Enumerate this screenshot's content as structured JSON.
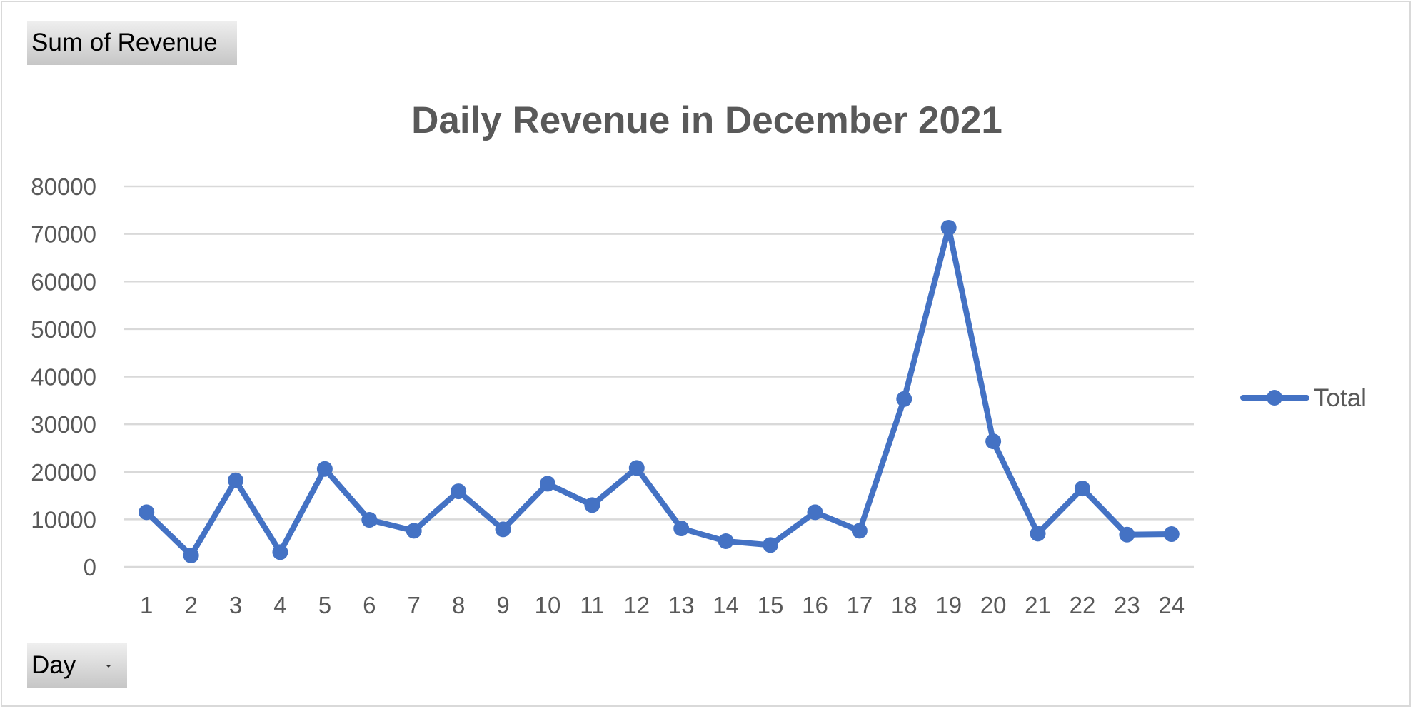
{
  "pivot": {
    "value_field": "Sum of Revenue",
    "axis_field": "Day"
  },
  "colors": {
    "series": "#4472c4",
    "gridline": "#d9d9d9",
    "text": "#595959"
  },
  "chart_data": {
    "type": "line",
    "title": "Daily Revenue in December 2021",
    "xlabel": "",
    "ylabel": "",
    "categories": [
      "1",
      "2",
      "3",
      "4",
      "5",
      "6",
      "7",
      "8",
      "9",
      "10",
      "11",
      "12",
      "13",
      "14",
      "15",
      "16",
      "17",
      "18",
      "19",
      "20",
      "21",
      "22",
      "23",
      "24"
    ],
    "series": [
      {
        "name": "Total",
        "values": [
          11500,
          2400,
          18200,
          3100,
          20600,
          9900,
          7600,
          15900,
          7900,
          17500,
          13000,
          20800,
          8100,
          5400,
          4600,
          11500,
          7600,
          35300,
          71300,
          26400,
          7000,
          16500,
          6800,
          6900
        ]
      }
    ],
    "ylim": [
      0,
      80000
    ],
    "yticks": [
      "0",
      "10000",
      "20000",
      "30000",
      "40000",
      "50000",
      "60000",
      "70000",
      "80000"
    ],
    "grid": true,
    "legend": "right",
    "markers": true
  }
}
